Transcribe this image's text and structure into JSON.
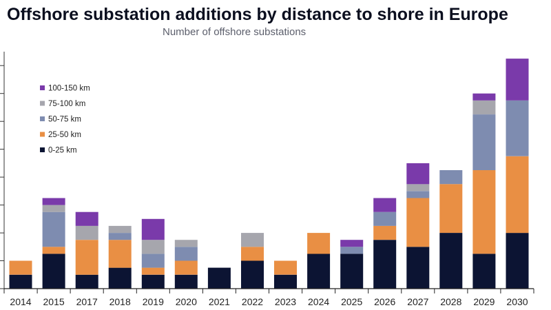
{
  "chart_data": {
    "type": "bar",
    "stacked": true,
    "title": "Offshore substation additions by distance to shore in Europe",
    "subtitle": "Number of offshore substations",
    "xlabel": "",
    "ylabel": "",
    "ylim": [
      0,
      17
    ],
    "grid": false,
    "legend_position": "upper-left",
    "categories": [
      "2014",
      "2015",
      "2017",
      "2018",
      "2019",
      "2020",
      "2021",
      "2022",
      "2023",
      "2024",
      "2025",
      "2026",
      "2027",
      "2028",
      "2029",
      "2030"
    ],
    "series": [
      {
        "name": "0-25 km",
        "color": "#0c1433",
        "values": [
          1,
          2.5,
          1,
          1.5,
          1,
          1,
          1.5,
          2,
          1,
          2.5,
          2.5,
          3.5,
          3,
          4,
          2.5,
          4
        ]
      },
      {
        "name": "25-50 km",
        "color": "#e98f44",
        "values": [
          1,
          0.5,
          2.5,
          2,
          0.5,
          1,
          0,
          1,
          1,
          1.5,
          0,
          1,
          3.5,
          3.5,
          6,
          5.5
        ]
      },
      {
        "name": "50-75 km",
        "color": "#7e8cb0",
        "values": [
          0,
          2.5,
          0,
          0.5,
          1,
          1,
          0,
          0,
          0,
          0,
          0.5,
          1,
          0.5,
          1,
          4,
          4
        ]
      },
      {
        "name": "75-100 km",
        "color": "#a6a6ad",
        "values": [
          0,
          0.5,
          1,
          0.5,
          1,
          0.5,
          0,
          1,
          0,
          0,
          0,
          0,
          0.5,
          0,
          1,
          0
        ]
      },
      {
        "name": "100-150 km",
        "color": "#7a3aaa",
        "values": [
          0,
          0.5,
          1,
          0,
          1.5,
          0,
          0,
          0,
          0,
          0,
          0.5,
          1,
          1.5,
          0,
          0.5,
          3
        ]
      }
    ]
  }
}
